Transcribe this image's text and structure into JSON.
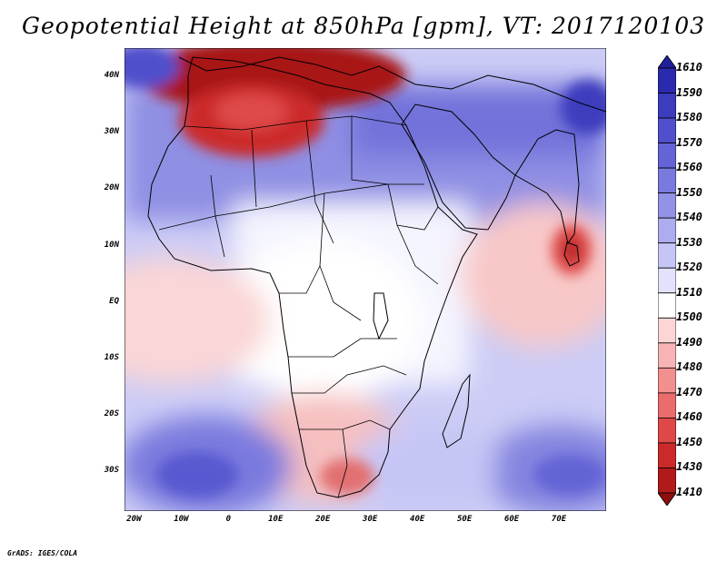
{
  "title": "Geopotential Height at 850hPa [gpm], VT: 2017120103",
  "footer": "GrADS: IGES/COLA",
  "lat_labels": [
    "40N",
    "30N",
    "20N",
    "10N",
    "EQ",
    "10S",
    "20S",
    "30S"
  ],
  "lat_values": [
    40,
    30,
    20,
    10,
    0,
    -10,
    -20,
    -30
  ],
  "lon_labels": [
    "20W",
    "10W",
    "0",
    "10E",
    "20E",
    "30E",
    "40E",
    "50E",
    "60E",
    "70E"
  ],
  "lon_values": [
    -20,
    -10,
    0,
    10,
    20,
    30,
    40,
    50,
    60,
    70
  ],
  "domain": {
    "lon_range": [
      -22,
      80
    ],
    "lat_range": [
      -37,
      45
    ]
  },
  "colorbar": {
    "levels": [
      "1610",
      "1590",
      "1580",
      "1570",
      "1560",
      "1550",
      "1540",
      "1530",
      "1520",
      "1510",
      "1500",
      "1490",
      "1480",
      "1470",
      "1460",
      "1450",
      "1430",
      "1410"
    ],
    "colors": [
      "#20209a",
      "#2a2aae",
      "#3c3cbe",
      "#5050cc",
      "#6464d6",
      "#7a7ade",
      "#9292e6",
      "#acacee",
      "#c6c6f6",
      "#e2e2fc",
      "#ffffff",
      "#fcd6d6",
      "#f8b4b4",
      "#f29090",
      "#ea6c6c",
      "#de4848",
      "#cc2a2a",
      "#b01a1a",
      "#8e0e0e"
    ]
  }
}
